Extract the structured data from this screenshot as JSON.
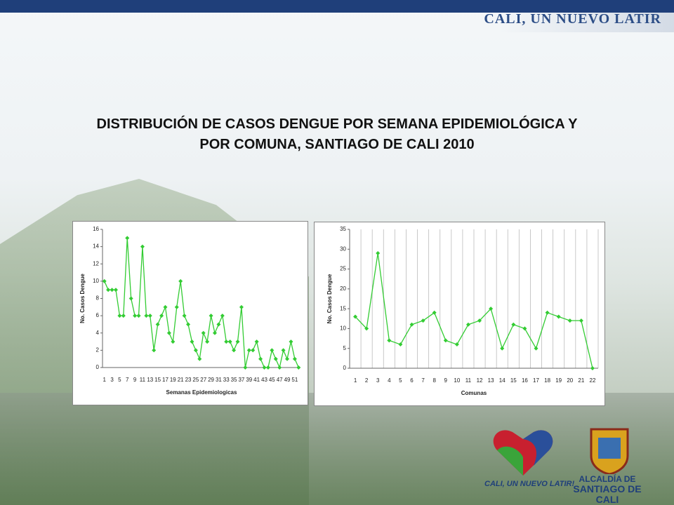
{
  "slide": {
    "banner": "CALI, UN NUEVO LATIR",
    "title_line1": "DISTRIBUCIÓN DE CASOS DENGUE POR SEMANA EPIDEMIOLÓGICA Y",
    "title_line2": "POR COMUNA, SANTIAGO DE CALI 2010",
    "logo_left": "CALI, UN NUEVO LATIR!",
    "logo_right_line1": "ALCALDÍA DE",
    "logo_right_line2": "SANTIAGO DE CALI"
  },
  "chart_data": [
    {
      "type": "line",
      "x_label": "Semanas Epidemiologicas",
      "y_label": "No. Casos Dengue",
      "categories": [
        1,
        null,
        3,
        null,
        5,
        null,
        7,
        null,
        9,
        null,
        11,
        null,
        13,
        null,
        15,
        null,
        17,
        null,
        19,
        null,
        21,
        null,
        23,
        null,
        25,
        null,
        27,
        null,
        29,
        null,
        31,
        null,
        33,
        null,
        35,
        null,
        37,
        null,
        39,
        null,
        41,
        null,
        43,
        null,
        45,
        null,
        47,
        null,
        49,
        null,
        51,
        null
      ],
      "values": [
        10,
        9,
        9,
        9,
        6,
        6,
        15,
        8,
        6,
        6,
        14,
        6,
        6,
        2,
        5,
        6,
        7,
        4,
        3,
        7,
        10,
        6,
        5,
        3,
        2,
        1,
        4,
        3,
        6,
        4,
        5,
        6,
        3,
        3,
        2,
        3,
        7,
        0,
        2,
        2,
        3,
        1,
        0,
        0,
        2,
        1,
        0,
        2,
        1,
        3,
        1,
        0
      ],
      "color": "#33cc33",
      "ylim": [
        0,
        16
      ],
      "yticks": [
        0,
        2,
        4,
        6,
        8,
        10,
        12,
        14,
        16
      ],
      "grid": false
    },
    {
      "type": "line",
      "x_label": "Comunas",
      "y_label": "No. Casos Dengue",
      "categories": [
        1,
        2,
        3,
        4,
        5,
        6,
        7,
        8,
        9,
        10,
        11,
        12,
        13,
        14,
        15,
        16,
        17,
        18,
        19,
        20,
        21,
        22
      ],
      "values": [
        13,
        10,
        29,
        7,
        6,
        11,
        12,
        14,
        7,
        6,
        11,
        12,
        15,
        5,
        11,
        10,
        5,
        14,
        13,
        12,
        12,
        0
      ],
      "color": "#33cc33",
      "ylim": [
        0,
        35
      ],
      "yticks": [
        0,
        5,
        10,
        15,
        20,
        25,
        30,
        35
      ],
      "grid": true
    }
  ]
}
